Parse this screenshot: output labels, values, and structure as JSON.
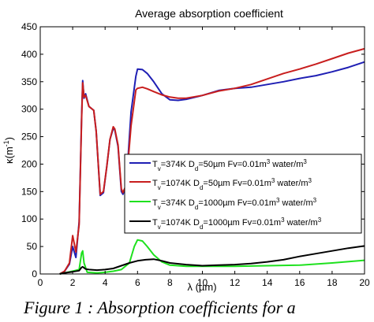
{
  "caption": "Figure 1 : Absorption coefficients for a",
  "chart_data": {
    "type": "line",
    "title": "Average absorption coefficient",
    "xlabel": "λ (µm)",
    "ylabel_main": "κ(m",
    "ylabel_sup": "-1",
    "ylabel_tail": ")",
    "xlim": [
      0,
      20
    ],
    "ylim": [
      0,
      450
    ],
    "xticks": [
      0,
      2,
      4,
      6,
      8,
      10,
      12,
      14,
      16,
      18,
      20
    ],
    "yticks": [
      0,
      50,
      100,
      150,
      200,
      250,
      300,
      350,
      400,
      450
    ],
    "legend_position": "center-right",
    "series": [
      {
        "color": "#1f1fb4",
        "legend_parts": [
          [
            "T",
            ""
          ],
          [
            "v",
            "sub"
          ],
          [
            "=374K D",
            ""
          ],
          [
            "d",
            "sub"
          ],
          [
            "=50µm Fv=0.01m",
            ""
          ],
          [
            "3",
            "sup"
          ],
          [
            " water/m",
            ""
          ],
          [
            "3",
            "sup"
          ]
        ],
        "points": [
          [
            1.2,
            0
          ],
          [
            1.5,
            5
          ],
          [
            1.8,
            18
          ],
          [
            2.0,
            50
          ],
          [
            2.2,
            30
          ],
          [
            2.4,
            95
          ],
          [
            2.55,
            285
          ],
          [
            2.62,
            352
          ],
          [
            2.7,
            320
          ],
          [
            2.8,
            328
          ],
          [
            3.0,
            305
          ],
          [
            3.3,
            298
          ],
          [
            3.45,
            260
          ],
          [
            3.7,
            143
          ],
          [
            3.9,
            148
          ],
          [
            4.1,
            195
          ],
          [
            4.3,
            245
          ],
          [
            4.5,
            265
          ],
          [
            4.6,
            262
          ],
          [
            4.8,
            232
          ],
          [
            5.0,
            150
          ],
          [
            5.1,
            145
          ],
          [
            5.3,
            160
          ],
          [
            5.6,
            295
          ],
          [
            5.9,
            360
          ],
          [
            6.0,
            373
          ],
          [
            6.3,
            372
          ],
          [
            6.6,
            365
          ],
          [
            7.0,
            350
          ],
          [
            7.5,
            328
          ],
          [
            8.0,
            317
          ],
          [
            8.5,
            316
          ],
          [
            9.0,
            318
          ],
          [
            10,
            325
          ],
          [
            11,
            334
          ],
          [
            12,
            338
          ],
          [
            13,
            340
          ],
          [
            14,
            345
          ],
          [
            15,
            350
          ],
          [
            16,
            356
          ],
          [
            17,
            361
          ],
          [
            18,
            368
          ],
          [
            19,
            376
          ],
          [
            20,
            386
          ]
        ]
      },
      {
        "color": "#c81e1e",
        "legend_parts": [
          [
            "T",
            ""
          ],
          [
            "v",
            "sub"
          ],
          [
            "=1074K D",
            ""
          ],
          [
            "d",
            "sub"
          ],
          [
            "=50µm Fv=0.01m",
            ""
          ],
          [
            "3",
            "sup"
          ],
          [
            " water/m",
            ""
          ],
          [
            "3",
            "sup"
          ]
        ],
        "points": [
          [
            1.2,
            0
          ],
          [
            1.5,
            5
          ],
          [
            1.8,
            20
          ],
          [
            2.0,
            70
          ],
          [
            2.2,
            40
          ],
          [
            2.4,
            90
          ],
          [
            2.55,
            280
          ],
          [
            2.62,
            348
          ],
          [
            2.7,
            322
          ],
          [
            2.8,
            325
          ],
          [
            3.0,
            305
          ],
          [
            3.3,
            298
          ],
          [
            3.45,
            260
          ],
          [
            3.7,
            145
          ],
          [
            3.9,
            150
          ],
          [
            4.1,
            195
          ],
          [
            4.3,
            245
          ],
          [
            4.5,
            268
          ],
          [
            4.6,
            264
          ],
          [
            4.8,
            235
          ],
          [
            5.0,
            155
          ],
          [
            5.1,
            148
          ],
          [
            5.3,
            162
          ],
          [
            5.6,
            270
          ],
          [
            5.9,
            335
          ],
          [
            6.0,
            338
          ],
          [
            6.3,
            340
          ],
          [
            6.6,
            337
          ],
          [
            7.0,
            332
          ],
          [
            7.5,
            326
          ],
          [
            8.0,
            322
          ],
          [
            8.5,
            320
          ],
          [
            9.0,
            320
          ],
          [
            10,
            325
          ],
          [
            11,
            333
          ],
          [
            12,
            338
          ],
          [
            13,
            345
          ],
          [
            14,
            355
          ],
          [
            15,
            365
          ],
          [
            16,
            373
          ],
          [
            17,
            382
          ],
          [
            18,
            392
          ],
          [
            19,
            402
          ],
          [
            20,
            410
          ]
        ]
      },
      {
        "color": "#1ee11e",
        "legend_parts": [
          [
            "T",
            ""
          ],
          [
            "v",
            "sub"
          ],
          [
            "=374K D",
            ""
          ],
          [
            "d",
            "sub"
          ],
          [
            "=1000µm Fv=0.01m",
            ""
          ],
          [
            "3",
            "sup"
          ],
          [
            " water/m",
            ""
          ],
          [
            "3",
            "sup"
          ]
        ],
        "points": [
          [
            1.2,
            0
          ],
          [
            1.5,
            2
          ],
          [
            2.0,
            5
          ],
          [
            2.4,
            8
          ],
          [
            2.55,
            38
          ],
          [
            2.62,
            42
          ],
          [
            2.7,
            20
          ],
          [
            2.9,
            3
          ],
          [
            3.5,
            2
          ],
          [
            4.0,
            3
          ],
          [
            4.5,
            5
          ],
          [
            5.0,
            8
          ],
          [
            5.5,
            20
          ],
          [
            5.8,
            50
          ],
          [
            6.0,
            62
          ],
          [
            6.3,
            60
          ],
          [
            6.6,
            50
          ],
          [
            7.0,
            35
          ],
          [
            7.5,
            22
          ],
          [
            8.0,
            16
          ],
          [
            9.0,
            14
          ],
          [
            10,
            14
          ],
          [
            12,
            14
          ],
          [
            14,
            15
          ],
          [
            16,
            16
          ],
          [
            18,
            20
          ],
          [
            20,
            25
          ]
        ]
      },
      {
        "color": "#000000",
        "legend_parts": [
          [
            "T",
            ""
          ],
          [
            "v",
            "sub"
          ],
          [
            "=1074K D",
            ""
          ],
          [
            "d",
            "sub"
          ],
          [
            "=1000µm Fv=0.01m",
            ""
          ],
          [
            "3",
            "sup"
          ],
          [
            " water/m",
            ""
          ],
          [
            "3",
            "sup"
          ]
        ],
        "points": [
          [
            1.2,
            0
          ],
          [
            1.5,
            2
          ],
          [
            2.0,
            4
          ],
          [
            2.4,
            6
          ],
          [
            2.55,
            12
          ],
          [
            2.62,
            13
          ],
          [
            2.8,
            9
          ],
          [
            3.0,
            8
          ],
          [
            3.5,
            7
          ],
          [
            4.0,
            8
          ],
          [
            4.5,
            10
          ],
          [
            5.0,
            15
          ],
          [
            5.5,
            20
          ],
          [
            6.0,
            24
          ],
          [
            6.5,
            26
          ],
          [
            7.0,
            27
          ],
          [
            7.5,
            24
          ],
          [
            8.0,
            20
          ],
          [
            9.0,
            17
          ],
          [
            10,
            15
          ],
          [
            11,
            16
          ],
          [
            12,
            17
          ],
          [
            13,
            19
          ],
          [
            14,
            22
          ],
          [
            15,
            26
          ],
          [
            16,
            32
          ],
          [
            17,
            37
          ],
          [
            18,
            42
          ],
          [
            19,
            47
          ],
          [
            20,
            51
          ]
        ]
      }
    ]
  }
}
